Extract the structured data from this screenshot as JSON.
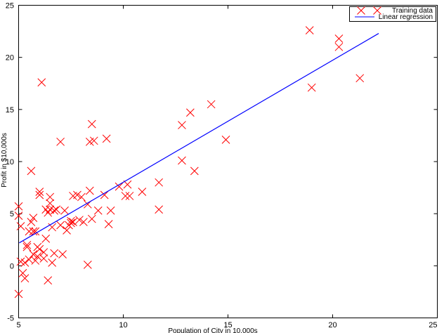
{
  "chart_data": {
    "type": "scatter",
    "title": "",
    "xlabel": "Population of City in 10,000s",
    "ylabel": "Profit in $10,000s",
    "xlim": [
      5,
      25
    ],
    "ylim": [
      -5,
      25
    ],
    "xticks": [
      5,
      10,
      15,
      20,
      25
    ],
    "yticks": [
      -5,
      0,
      5,
      10,
      15,
      20,
      25
    ],
    "grid": false,
    "legend_position": "top-right",
    "series": [
      {
        "name": "Training data",
        "kind": "scatter",
        "marker": "x",
        "color": "#ff0000",
        "points": [
          [
            5.0,
            -2.7
          ],
          [
            5.0,
            5.7
          ],
          [
            5.0,
            4.8
          ],
          [
            5.1,
            3.8
          ],
          [
            5.1,
            0.4
          ],
          [
            5.2,
            -0.7
          ],
          [
            5.3,
            -1.2
          ],
          [
            5.3,
            0.3
          ],
          [
            5.4,
            2.0
          ],
          [
            5.4,
            1.8
          ],
          [
            5.5,
            0.6
          ],
          [
            5.5,
            3.3
          ],
          [
            5.6,
            4.2
          ],
          [
            5.6,
            9.1
          ],
          [
            5.7,
            3.3
          ],
          [
            5.7,
            1.1
          ],
          [
            5.7,
            4.6
          ],
          [
            5.8,
            0.5
          ],
          [
            5.8,
            3.3
          ],
          [
            5.9,
            1.8
          ],
          [
            5.9,
            0.9
          ],
          [
            6.0,
            7.1
          ],
          [
            6.0,
            6.8
          ],
          [
            6.0,
            1.6
          ],
          [
            6.1,
            17.6
          ],
          [
            6.2,
            0.7
          ],
          [
            6.2,
            1.3
          ],
          [
            6.3,
            2.6
          ],
          [
            6.3,
            5.4
          ],
          [
            6.4,
            5.1
          ],
          [
            6.4,
            -1.4
          ],
          [
            6.5,
            5.4
          ],
          [
            6.5,
            6.6
          ],
          [
            6.5,
            6.0
          ],
          [
            6.6,
            0.3
          ],
          [
            6.6,
            3.7
          ],
          [
            6.7,
            5.3
          ],
          [
            6.7,
            1.2
          ],
          [
            6.8,
            5.4
          ],
          [
            7.0,
            3.9
          ],
          [
            7.0,
            11.9
          ],
          [
            7.1,
            1.1
          ],
          [
            7.2,
            5.3
          ],
          [
            7.3,
            3.4
          ],
          [
            7.4,
            3.9
          ],
          [
            7.5,
            4.3
          ],
          [
            7.5,
            4.1
          ],
          [
            7.6,
            6.7
          ],
          [
            7.6,
            4.2
          ],
          [
            7.8,
            6.8
          ],
          [
            7.9,
            4.4
          ],
          [
            8.0,
            6.6
          ],
          [
            8.1,
            4.2
          ],
          [
            8.3,
            5.9
          ],
          [
            8.3,
            0.1
          ],
          [
            8.4,
            7.2
          ],
          [
            8.4,
            11.9
          ],
          [
            8.5,
            4.5
          ],
          [
            8.5,
            13.6
          ],
          [
            8.6,
            12.0
          ],
          [
            8.8,
            5.3
          ],
          [
            9.1,
            6.8
          ],
          [
            9.2,
            12.2
          ],
          [
            9.3,
            4.0
          ],
          [
            9.4,
            5.3
          ],
          [
            9.8,
            7.6
          ],
          [
            10.1,
            6.7
          ],
          [
            10.2,
            7.8
          ],
          [
            10.3,
            6.7
          ],
          [
            10.9,
            7.1
          ],
          [
            11.7,
            8.0
          ],
          [
            11.7,
            5.4
          ],
          [
            12.8,
            13.5
          ],
          [
            12.8,
            10.1
          ],
          [
            13.2,
            14.7
          ],
          [
            13.4,
            9.1
          ],
          [
            14.2,
            15.5
          ],
          [
            14.9,
            12.1
          ],
          [
            18.9,
            22.6
          ],
          [
            19.0,
            17.1
          ],
          [
            20.3,
            21.8
          ],
          [
            20.3,
            21.0
          ],
          [
            21.3,
            18.0
          ]
        ]
      },
      {
        "name": "Linear regression",
        "kind": "line",
        "color": "#0000ff",
        "points": [
          [
            5.03,
            2.2
          ],
          [
            22.2,
            22.3
          ]
        ]
      }
    ]
  }
}
